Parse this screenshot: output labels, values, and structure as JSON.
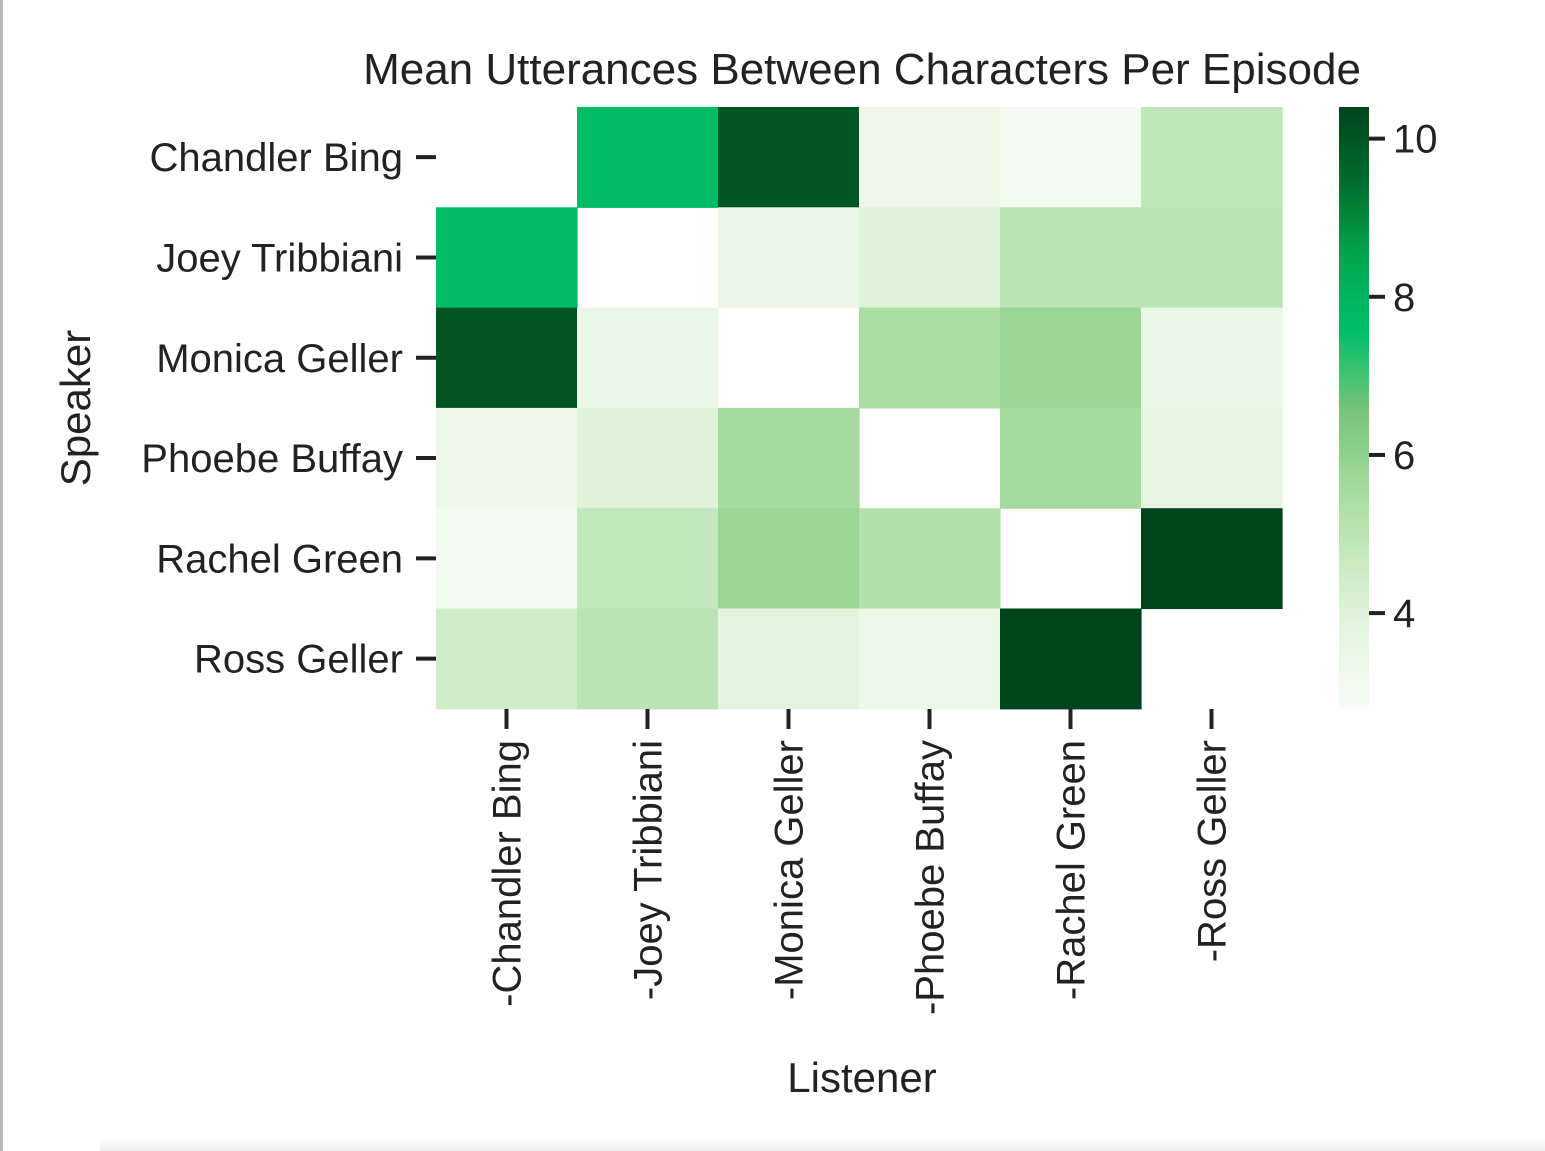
{
  "chart_data": {
    "type": "heatmap",
    "title": "Mean Utterances Between Characters Per Episode",
    "xlabel": "Listener",
    "ylabel": "Speaker",
    "rows": [
      "Chandler Bing",
      "Joey Tribbiani",
      "Monica Geller",
      "Phoebe Buffay",
      "Rachel Green",
      "Ross Geller"
    ],
    "columns": [
      "-Chandler Bing",
      "-Joey Tribbiani",
      "-Monica Geller",
      "-Phoebe Buffay",
      "-Rachel Green",
      "-Ross Geller"
    ],
    "values": [
      [
        null,
        7.7,
        10.0,
        3.3,
        3.0,
        4.9
      ],
      [
        7.7,
        null,
        3.5,
        4.0,
        5.0,
        5.0
      ],
      [
        10.0,
        3.5,
        null,
        5.4,
        5.8,
        3.5
      ],
      [
        3.3,
        4.0,
        5.6,
        null,
        5.6,
        3.7
      ],
      [
        3.0,
        4.8,
        5.8,
        5.2,
        null,
        10.4
      ],
      [
        4.4,
        5.0,
        3.8,
        3.4,
        10.4,
        null
      ]
    ],
    "colorbar": {
      "min": 2.8,
      "max": 10.4,
      "ticks": [
        4,
        6,
        8,
        10
      ],
      "colors": [
        "#f7fcf5",
        "#e5f5e0",
        "#c7e9c0",
        "#a1d99b",
        "#74c476",
        "#00c06a",
        "#00a650",
        "#006d2c",
        "#00441b"
      ]
    },
    "colormap": "Greens"
  }
}
